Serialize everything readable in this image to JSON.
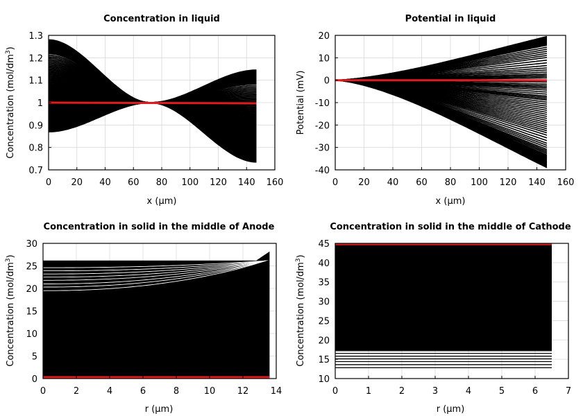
{
  "figure": {
    "curve_color": "#000000",
    "final_curve_color": "#e31a1c",
    "background": "#ffffff",
    "grid": true,
    "legend": "none"
  },
  "chart_data": [
    {
      "type": "line",
      "title": "Concentration in liquid",
      "xlabel": "x (µm)",
      "ylabel_main": "Concentration (mol/dm",
      "ylabel_sup": "3",
      "ylabel_tail": ")",
      "xlim": [
        0,
        160
      ],
      "ylim": [
        0.7,
        1.3
      ],
      "xticks": [
        0,
        20,
        40,
        60,
        80,
        100,
        120,
        140,
        160
      ],
      "yticks": [
        0.7,
        0.8,
        0.9,
        1,
        1.1,
        1.2,
        1.3
      ],
      "xtick_labels": [
        "0",
        "20",
        "40",
        "60",
        "80",
        "100",
        "120",
        "140",
        "160"
      ],
      "ytick_labels": [
        "0.7",
        "0.8",
        "0.9",
        "1",
        "1.1",
        "1.2",
        "1.3"
      ],
      "series_family": {
        "description": "family of curves crossing near x = 72",
        "x_range": [
          0,
          147
        ],
        "crossing_x": 72,
        "crossing_y": 1.0,
        "envelope_upper": {
          "x": [
            0,
            72,
            147
          ],
          "y": [
            1.28,
            1.0,
            1.145
          ]
        },
        "envelope_lower": {
          "x": [
            0,
            72,
            147
          ],
          "y": [
            0.87,
            1.0,
            0.735
          ]
        },
        "visible_endpoints_left": [
          1.28,
          1.27,
          1.25,
          1.2,
          1.185,
          1.14,
          1.135,
          1.1,
          1.07,
          1.04,
          1.02,
          0.97,
          0.94,
          0.92,
          0.9,
          0.88,
          0.87
        ],
        "visible_endpoints_right": [
          1.145,
          1.14,
          1.11,
          1.09,
          1.07,
          1.03,
          0.98,
          0.94,
          0.91,
          0.87,
          0.83,
          0.8,
          0.78,
          0.76,
          0.745,
          0.735
        ]
      },
      "final_series": {
        "x": [
          0,
          147
        ],
        "y": [
          1.0,
          0.997
        ]
      }
    },
    {
      "type": "line",
      "title": "Potential in liquid",
      "xlabel": "x (µm)",
      "ylabel_main": "Potential (mV)",
      "ylabel_sup": "",
      "ylabel_tail": "",
      "xlim": [
        0,
        160
      ],
      "ylim": [
        -40,
        20
      ],
      "xticks": [
        0,
        20,
        40,
        60,
        80,
        100,
        120,
        140,
        160
      ],
      "yticks": [
        -40,
        -30,
        -20,
        -10,
        0,
        10,
        20
      ],
      "xtick_labels": [
        "0",
        "20",
        "40",
        "60",
        "80",
        "100",
        "120",
        "140",
        "160"
      ],
      "ytick_labels": [
        "-40",
        "-30",
        "-20",
        "-10",
        "0",
        "10",
        "20"
      ],
      "series_family": {
        "description": "fan of curves starting at 0 from x = 0",
        "x_range": [
          0,
          147
        ],
        "start_y": 0,
        "visible_endpoints_right": [
          19.5,
          18,
          16,
          13,
          10,
          6,
          3,
          1,
          -2,
          -4,
          -7,
          -9,
          -12,
          -15,
          -18,
          -21,
          -24,
          -28,
          -31,
          -33,
          -35,
          -39
        ]
      },
      "final_series": {
        "x": [
          0,
          147
        ],
        "y": [
          0,
          0
        ]
      }
    },
    {
      "type": "line",
      "title": "Concentration in solid in the middle of Anode",
      "xlabel": "r (µm)",
      "ylabel_main": "Concentration (mol/dm",
      "ylabel_sup": "3",
      "ylabel_tail": ")",
      "xlim": [
        0,
        14
      ],
      "ylim": [
        0,
        30
      ],
      "xticks": [
        0,
        2,
        4,
        6,
        8,
        10,
        12,
        14
      ],
      "yticks": [
        0,
        5,
        10,
        15,
        20,
        25,
        30
      ],
      "xtick_labels": [
        "0",
        "2",
        "4",
        "6",
        "8",
        "10",
        "12",
        "14"
      ],
      "ytick_labels": [
        "0",
        "5",
        "10",
        "15",
        "20",
        "25",
        "30"
      ],
      "series_family": {
        "description": "dense family of radial profiles filling 0 to 26",
        "x_range": [
          0,
          13.6
        ],
        "fill_range": [
          0,
          26.2
        ],
        "upper_flat": 26.2,
        "upper_edge_end": 28.2,
        "visible_profiles": [
          {
            "y0": 18.8,
            "y_end": 26.2
          },
          {
            "y0": 19.5,
            "y_end": 26.2
          },
          {
            "y0": 20.3,
            "y_end": 26.2
          },
          {
            "y0": 21.0,
            "y_end": 26.2
          },
          {
            "y0": 21.8,
            "y_end": 26.2
          },
          {
            "y0": 22.5,
            "y_end": 26.2
          },
          {
            "y0": 23.2,
            "y_end": 26.2
          },
          {
            "y0": 23.9,
            "y_end": 26.2
          },
          {
            "y0": 24.6,
            "y_end": 26.2
          }
        ]
      },
      "final_series": {
        "x": [
          0,
          13.6
        ],
        "y": [
          0.3,
          0.3
        ]
      }
    },
    {
      "type": "line",
      "title": "Concentration in solid in the middle of Cathode",
      "xlabel": "r (µm)",
      "ylabel_main": "Concentration (mol/dm",
      "ylabel_sup": "3",
      "ylabel_tail": ")",
      "xlim": [
        0,
        7
      ],
      "ylim": [
        10,
        45
      ],
      "xticks": [
        0,
        1,
        2,
        3,
        4,
        5,
        6,
        7
      ],
      "yticks": [
        10,
        15,
        20,
        25,
        30,
        35,
        40,
        45
      ],
      "xtick_labels": [
        "0",
        "1",
        "2",
        "3",
        "4",
        "5",
        "6",
        "7"
      ],
      "ytick_labels": [
        "10",
        "15",
        "20",
        "25",
        "30",
        "35",
        "40",
        "45"
      ],
      "series_family": {
        "description": "dense family of flat profiles filling 12.8 to 44.8",
        "x_range": [
          0,
          6.5
        ],
        "fill_range": [
          17.3,
          44.8
        ],
        "visible_levels": [
          12.8,
          13.6,
          14.4,
          15.1,
          15.8,
          16.5,
          17.2
        ]
      },
      "final_series": {
        "x": [
          0,
          6.5
        ],
        "y": [
          44.8,
          44.8
        ]
      }
    }
  ]
}
